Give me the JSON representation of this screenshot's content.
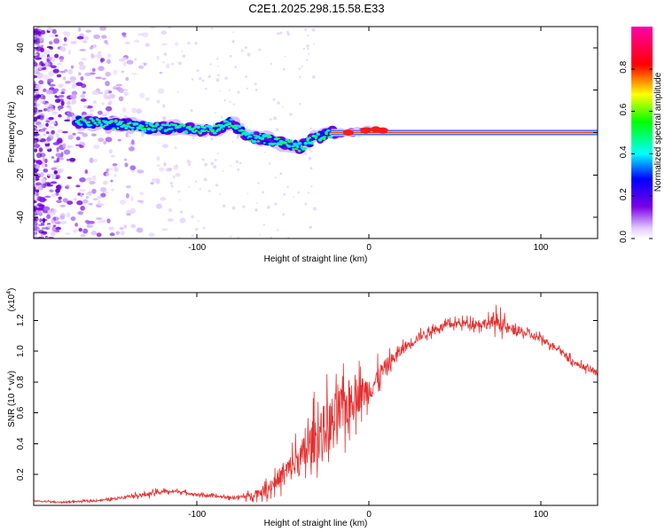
{
  "chart_data": [
    {
      "type": "heatmap",
      "title": "C2E1.2025.298.15.58.E33",
      "xlabel": "Height of straight line (km)",
      "ylabel": "Frequency (Hz)",
      "xlim": [
        -195,
        133
      ],
      "ylim": [
        -50,
        50
      ],
      "x_ticks": [
        -100,
        0,
        100
      ],
      "y_ticks": [
        -40,
        -20,
        0,
        20,
        40
      ],
      "ridge": {
        "description_points_x": [
          -165,
          -150,
          -135,
          -120,
          -105,
          -90,
          -80,
          -70,
          -60,
          -50,
          -40,
          -30,
          -20,
          -10,
          0,
          5,
          10,
          30,
          60,
          100,
          133
        ],
        "description_points_freq": [
          5,
          4,
          3,
          2,
          2,
          1,
          5,
          -2,
          -3,
          -5,
          -7,
          -2,
          0,
          0,
          1,
          2,
          1,
          0,
          0,
          0,
          0
        ]
      },
      "colorbar": {
        "label": "Normalized spectral amplitude",
        "range": [
          0.0,
          1.0
        ],
        "ticks": [
          0.0,
          0.2,
          0.4,
          0.6,
          0.8
        ],
        "tick_labels": [
          "0.0",
          "0.2",
          "0.4",
          "0.6",
          "0.8"
        ],
        "colors": [
          "#ffffff",
          "#7a00e6",
          "#0000ff",
          "#00ffff",
          "#00ff00",
          "#ffff00",
          "#ff0000",
          "#ff00aa"
        ]
      }
    },
    {
      "type": "line",
      "title": "",
      "xlabel": "Height of straight line (km)",
      "ylabel": "SNR (10 * v/v)",
      "multiplier_base": "(x10",
      "multiplier_exp": "4",
      "multiplier_close": ")",
      "xlim": [
        -195,
        133
      ],
      "ylim": [
        0,
        1.38
      ],
      "x_ticks": [
        -100,
        0,
        100
      ],
      "y_ticks": [
        0.2,
        0.4,
        0.6,
        0.8,
        1.0,
        1.2
      ],
      "y_tick_labels": [
        "0.2",
        "0.4",
        "0.6",
        "0.8",
        "1.0",
        "1.2"
      ],
      "color": "#e53030",
      "series": [
        {
          "name": "SNR",
          "x": [
            -195,
            -180,
            -160,
            -150,
            -140,
            -130,
            -120,
            -110,
            -100,
            -90,
            -80,
            -70,
            -60,
            -50,
            -40,
            -30,
            -20,
            -10,
            0,
            10,
            20,
            30,
            40,
            50,
            60,
            70,
            75,
            80,
            90,
            100,
            110,
            120,
            133
          ],
          "values": [
            0.03,
            0.02,
            0.03,
            0.04,
            0.06,
            0.07,
            0.09,
            0.09,
            0.07,
            0.06,
            0.05,
            0.06,
            0.1,
            0.2,
            0.3,
            0.45,
            0.55,
            0.7,
            0.75,
            0.9,
            1.02,
            1.1,
            1.15,
            1.18,
            1.18,
            1.18,
            1.2,
            1.15,
            1.12,
            1.08,
            1.02,
            0.92,
            0.86
          ],
          "noise_amplitude": [
            0.01,
            0.01,
            0.01,
            0.015,
            0.02,
            0.03,
            0.03,
            0.02,
            0.02,
            0.02,
            0.02,
            0.04,
            0.08,
            0.15,
            0.25,
            0.35,
            0.4,
            0.3,
            0.2,
            0.12,
            0.08,
            0.06,
            0.05,
            0.05,
            0.06,
            0.08,
            0.12,
            0.08,
            0.06,
            0.05,
            0.04,
            0.04,
            0.04
          ]
        }
      ]
    }
  ]
}
